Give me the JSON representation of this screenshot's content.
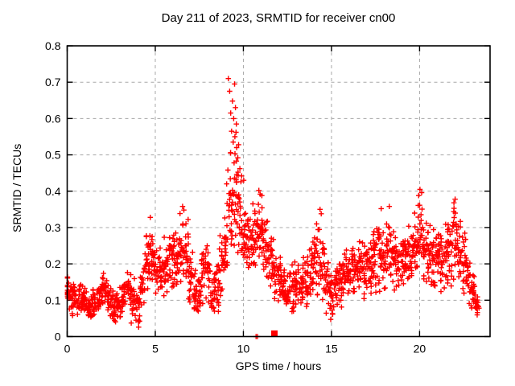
{
  "style": {
    "background": "#ffffff",
    "axis_color": "#000000",
    "grid_color": "#a8a8a8",
    "text_color": "#000000"
  },
  "chart_data": {
    "type": "scatter",
    "title": "Day 211 of 2023, SRMTID for receiver cn00",
    "xlabel": "GPS time / hours",
    "ylabel": "SRMTID / TECUs",
    "xlim": [
      0,
      24
    ],
    "ylim": [
      0,
      0.8
    ],
    "xticks": [
      0,
      5,
      10,
      15,
      20
    ],
    "yticks": [
      0,
      0.1,
      0.2,
      0.3,
      0.4,
      0.5,
      0.6,
      0.7,
      0.8
    ],
    "grid": true,
    "legend": "none",
    "marker": "plus",
    "marker_color": "#ff0000",
    "series": [
      {
        "name": "SRMTID",
        "representation": "binned_envelope",
        "bin_width_hours": 0.25,
        "points_per_bin": 20,
        "bins": [
          [
            0.0,
            0.06,
            0.19
          ],
          [
            0.25,
            0.05,
            0.16
          ],
          [
            0.5,
            0.05,
            0.14
          ],
          [
            0.75,
            0.06,
            0.15
          ],
          [
            1.0,
            0.05,
            0.14
          ],
          [
            1.25,
            0.03,
            0.12
          ],
          [
            1.5,
            0.04,
            0.14
          ],
          [
            1.75,
            0.06,
            0.16
          ],
          [
            2.0,
            0.07,
            0.18
          ],
          [
            2.25,
            0.06,
            0.16
          ],
          [
            2.5,
            0.04,
            0.14
          ],
          [
            2.75,
            0.03,
            0.13
          ],
          [
            3.0,
            0.05,
            0.15
          ],
          [
            3.25,
            0.07,
            0.17
          ],
          [
            3.5,
            0.08,
            0.18
          ],
          [
            3.75,
            0.03,
            0.16
          ],
          [
            4.0,
            0.02,
            0.15
          ],
          [
            4.25,
            0.07,
            0.2
          ],
          [
            4.5,
            0.1,
            0.28
          ],
          [
            4.75,
            0.12,
            0.33
          ],
          [
            5.0,
            0.1,
            0.25
          ],
          [
            5.25,
            0.1,
            0.27
          ],
          [
            5.5,
            0.11,
            0.28
          ],
          [
            5.75,
            0.12,
            0.31
          ],
          [
            6.0,
            0.12,
            0.3
          ],
          [
            6.25,
            0.12,
            0.31
          ],
          [
            6.5,
            0.13,
            0.36
          ],
          [
            6.75,
            0.12,
            0.33
          ],
          [
            7.0,
            0.08,
            0.24
          ],
          [
            7.25,
            0.06,
            0.2
          ],
          [
            7.5,
            0.05,
            0.18
          ],
          [
            7.75,
            0.08,
            0.27
          ],
          [
            8.0,
            0.08,
            0.28
          ],
          [
            8.25,
            0.04,
            0.2
          ],
          [
            8.5,
            0.06,
            0.22
          ],
          [
            8.75,
            0.1,
            0.28
          ],
          [
            9.0,
            0.13,
            0.4
          ],
          [
            9.25,
            0.18,
            0.52
          ],
          [
            9.5,
            0.2,
            0.55
          ],
          [
            9.75,
            0.18,
            0.5
          ],
          [
            10.0,
            0.16,
            0.42
          ],
          [
            10.25,
            0.16,
            0.36
          ],
          [
            10.5,
            0.17,
            0.37
          ],
          [
            10.75,
            0.18,
            0.38
          ],
          [
            11.0,
            0.17,
            0.38
          ],
          [
            11.25,
            0.15,
            0.34
          ],
          [
            11.5,
            0.12,
            0.3
          ],
          [
            11.75,
            0.1,
            0.28
          ],
          [
            12.0,
            0.08,
            0.24
          ],
          [
            12.25,
            0.07,
            0.22
          ],
          [
            12.5,
            0.05,
            0.2
          ],
          [
            12.75,
            0.06,
            0.21
          ],
          [
            13.0,
            0.07,
            0.22
          ],
          [
            13.25,
            0.06,
            0.2
          ],
          [
            13.5,
            0.07,
            0.23
          ],
          [
            13.75,
            0.08,
            0.27
          ],
          [
            14.0,
            0.08,
            0.3
          ],
          [
            14.25,
            0.1,
            0.34
          ],
          [
            14.5,
            0.09,
            0.3
          ],
          [
            14.75,
            0.06,
            0.22
          ],
          [
            15.0,
            0.04,
            0.2
          ],
          [
            15.25,
            0.06,
            0.21
          ],
          [
            15.5,
            0.07,
            0.23
          ],
          [
            15.75,
            0.08,
            0.26
          ],
          [
            16.0,
            0.08,
            0.26
          ],
          [
            16.25,
            0.09,
            0.27
          ],
          [
            16.5,
            0.1,
            0.28
          ],
          [
            16.75,
            0.09,
            0.27
          ],
          [
            17.0,
            0.1,
            0.29
          ],
          [
            17.25,
            0.1,
            0.31
          ],
          [
            17.5,
            0.11,
            0.33
          ],
          [
            17.75,
            0.11,
            0.34
          ],
          [
            18.0,
            0.12,
            0.33
          ],
          [
            18.25,
            0.12,
            0.35
          ],
          [
            18.5,
            0.12,
            0.33
          ],
          [
            18.75,
            0.11,
            0.31
          ],
          [
            19.0,
            0.1,
            0.3
          ],
          [
            19.25,
            0.11,
            0.31
          ],
          [
            19.5,
            0.12,
            0.32
          ],
          [
            19.75,
            0.13,
            0.36
          ],
          [
            20.0,
            0.14,
            0.4
          ],
          [
            20.25,
            0.14,
            0.37
          ],
          [
            20.5,
            0.12,
            0.33
          ],
          [
            20.75,
            0.12,
            0.31
          ],
          [
            21.0,
            0.12,
            0.32
          ],
          [
            21.25,
            0.11,
            0.31
          ],
          [
            21.5,
            0.12,
            0.33
          ],
          [
            21.75,
            0.13,
            0.36
          ],
          [
            22.0,
            0.14,
            0.38
          ],
          [
            22.25,
            0.12,
            0.35
          ],
          [
            22.5,
            0.11,
            0.32
          ],
          [
            22.75,
            0.06,
            0.25
          ],
          [
            23.0,
            0.05,
            0.18
          ],
          [
            23.25,
            0.05,
            0.12
          ]
        ]
      }
    ],
    "outlier_points": [
      [
        9.15,
        0.71
      ],
      [
        9.5,
        0.695
      ],
      [
        9.22,
        0.675
      ],
      [
        9.38,
        0.648
      ],
      [
        9.55,
        0.63
      ],
      [
        9.28,
        0.615
      ],
      [
        9.45,
        0.6
      ],
      [
        9.6,
        0.585
      ],
      [
        9.33,
        0.565
      ],
      [
        9.58,
        0.562
      ],
      [
        9.52,
        0.55
      ],
      [
        9.42,
        0.535
      ],
      [
        9.73,
        0.528
      ],
      [
        9.62,
        0.52
      ],
      [
        9.27,
        0.505
      ],
      [
        9.68,
        0.492
      ],
      [
        9.47,
        0.478
      ],
      [
        9.8,
        0.462
      ],
      [
        9.12,
        0.458
      ],
      [
        9.9,
        0.442
      ],
      [
        10.02,
        0.43
      ],
      [
        9.05,
        0.42
      ],
      [
        10.88,
        0.402
      ],
      [
        10.95,
        0.392
      ],
      [
        11.05,
        0.388
      ],
      [
        20.02,
        0.405
      ],
      [
        20.12,
        0.396
      ],
      [
        19.95,
        0.388
      ],
      [
        22.02,
        0.378
      ],
      [
        21.95,
        0.368
      ],
      [
        6.55,
        0.358
      ],
      [
        6.62,
        0.348
      ],
      [
        14.35,
        0.35
      ],
      [
        14.42,
        0.338
      ],
      [
        17.82,
        0.352
      ],
      [
        18.28,
        0.358
      ],
      [
        4.72,
        0.328
      ]
    ],
    "baseline_points": [
      [
        10.72,
        0.0
      ],
      [
        10.8,
        0.0
      ]
    ],
    "square_marker": {
      "x": 11.76,
      "y": 0.008,
      "color": "#ff0000"
    }
  }
}
